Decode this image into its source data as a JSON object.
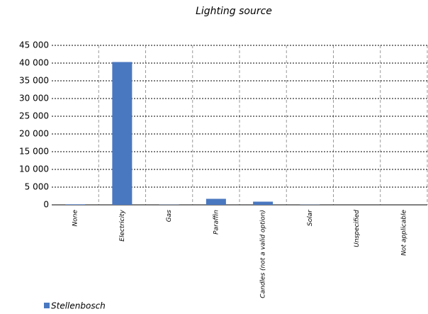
{
  "chart_data": {
    "type": "bar",
    "title": "Lighting source",
    "categories": [
      "None",
      "Electricity",
      "Gas",
      "Paraffin",
      "Candles (not a valid option)",
      "Solar",
      "Unspecified",
      "Not applicable"
    ],
    "series": [
      {
        "name": "Stellenbosch",
        "color": "#4a78c0",
        "values": [
          150,
          40300,
          50,
          1700,
          900,
          50,
          0,
          0
        ]
      }
    ],
    "ylim": [
      0,
      45000
    ],
    "yticks": [
      0,
      {
        "value": 5000,
        "label": "5 000"
      },
      {
        "value": 10000,
        "label": "10 000"
      },
      {
        "value": 15000,
        "label": "15 000"
      },
      {
        "value": 20000,
        "label": "20 000"
      },
      {
        "value": 25000,
        "label": "25 000"
      },
      {
        "value": 30000,
        "label": "30 000"
      },
      {
        "value": 35000,
        "label": "35 000"
      },
      {
        "value": 40000,
        "label": "40 000"
      },
      {
        "value": 45000,
        "label": "45 000"
      }
    ],
    "grid": true
  }
}
